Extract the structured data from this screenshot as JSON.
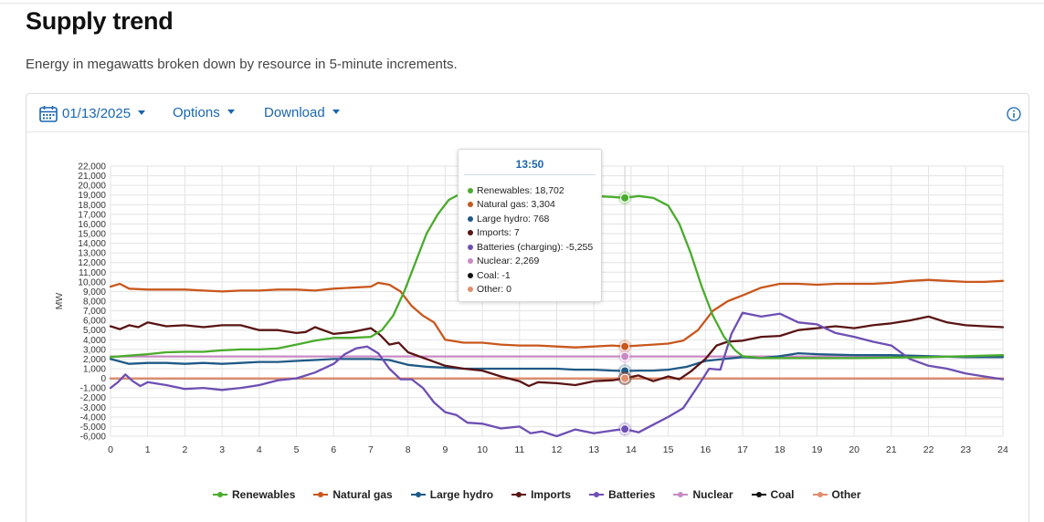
{
  "page": {
    "title": "Supply trend",
    "subtitle": "Energy in megawatts broken down by resource in 5-minute increments."
  },
  "toolbar": {
    "date": "01/13/2025",
    "options_label": "Options",
    "download_label": "Download",
    "icons": {
      "date": "calendar-icon",
      "info": "info-icon",
      "dropdown": "caret-down-icon"
    }
  },
  "tooltip": {
    "time": "13:50",
    "rows": [
      {
        "label": "Renewables: 18,702",
        "color": "#4aac2d"
      },
      {
        "label": "Natural gas: 3,304",
        "color": "#c9571d"
      },
      {
        "label": "Large hydro: 768",
        "color": "#1f5a86"
      },
      {
        "label": "Imports: 7",
        "color": "#5a1414"
      },
      {
        "label": "Batteries (charging): -5,255",
        "color": "#6e4fb3"
      },
      {
        "label": "Nuclear: 2,269",
        "color": "#c98ac4"
      },
      {
        "label": "Coal: -1",
        "color": "#111111"
      },
      {
        "label": "Other: 0",
        "color": "#e08d6c"
      }
    ]
  },
  "chart_data": {
    "type": "line",
    "ylabel": "MW",
    "xlabel": "",
    "xlim": [
      0,
      24
    ],
    "ylim": [
      -6000,
      22000
    ],
    "x_ticks": [
      0,
      1,
      2,
      3,
      4,
      5,
      6,
      7,
      8,
      9,
      10,
      11,
      12,
      13,
      14,
      15,
      16,
      17,
      18,
      19,
      20,
      21,
      22,
      23,
      24
    ],
    "y_ticks": [
      -6000,
      -5000,
      -4000,
      -3000,
      -2000,
      -1000,
      0,
      1000,
      2000,
      3000,
      4000,
      5000,
      6000,
      7000,
      8000,
      9000,
      10000,
      11000,
      12000,
      13000,
      14000,
      15000,
      16000,
      17000,
      18000,
      19000,
      20000,
      21000,
      22000
    ],
    "y_tick_labels": [
      "-6,000",
      "-5,000",
      "-4,000",
      "-3,000",
      "-2,000",
      "-1,000",
      "0",
      "1,000",
      "2,000",
      "3,000",
      "4,000",
      "5,000",
      "6,000",
      "7,000",
      "8,000",
      "9,000",
      "10,000",
      "11,000",
      "12,000",
      "13,000",
      "14,000",
      "15,000",
      "16,000",
      "17,000",
      "18,000",
      "19,000",
      "20,000",
      "21,000",
      "22,000"
    ],
    "grid": true,
    "legend_position": "bottom",
    "highlight_x": 13.833,
    "series": [
      {
        "name": "Renewables",
        "color": "#4aac2d",
        "x": [
          0,
          0.5,
          1,
          1.5,
          2,
          2.5,
          3,
          3.5,
          4,
          4.5,
          5,
          5.5,
          6,
          6.5,
          7,
          7.3,
          7.6,
          7.9,
          8.2,
          8.5,
          8.8,
          9.1,
          9.5,
          10,
          10.5,
          11,
          11.5,
          12,
          12.5,
          13,
          13.5,
          13.83,
          14.2,
          14.6,
          15,
          15.3,
          15.6,
          15.9,
          16.2,
          16.5,
          16.8,
          17,
          17.5,
          18,
          19,
          20,
          21,
          22,
          23,
          24
        ],
        "y": [
          2200,
          2350,
          2500,
          2700,
          2750,
          2750,
          2900,
          3000,
          3000,
          3100,
          3500,
          3900,
          4200,
          4200,
          4300,
          5000,
          6500,
          9000,
          12000,
          15000,
          17000,
          18500,
          19300,
          19400,
          19400,
          19400,
          19350,
          19300,
          19100,
          18900,
          18800,
          18702,
          18900,
          18700,
          17900,
          16000,
          13000,
          9500,
          6500,
          4300,
          2900,
          2300,
          2100,
          2100,
          2100,
          2100,
          2150,
          2200,
          2300,
          2400
        ]
      },
      {
        "name": "Natural gas",
        "color": "#c9571d",
        "x": [
          0,
          0.25,
          0.5,
          1,
          1.5,
          2,
          2.5,
          3,
          3.5,
          4,
          4.5,
          5,
          5.5,
          6,
          6.5,
          7,
          7.2,
          7.5,
          7.8,
          8.1,
          8.4,
          8.7,
          9,
          9.5,
          10,
          10.5,
          11,
          11.5,
          12,
          12.5,
          13,
          13.5,
          13.83,
          14.2,
          14.6,
          15,
          15.4,
          15.8,
          16.2,
          16.6,
          17,
          17.5,
          18,
          18.5,
          19,
          19.5,
          20,
          20.5,
          21,
          21.5,
          22,
          22.5,
          23,
          23.5,
          24
        ],
        "y": [
          9500,
          9800,
          9300,
          9200,
          9200,
          9200,
          9100,
          9000,
          9100,
          9100,
          9200,
          9200,
          9100,
          9300,
          9400,
          9500,
          9900,
          9700,
          9000,
          7500,
          6500,
          5800,
          4000,
          3700,
          3700,
          3500,
          3400,
          3400,
          3300,
          3200,
          3300,
          3400,
          3304,
          3400,
          3500,
          3600,
          3900,
          5000,
          7000,
          8000,
          8600,
          9400,
          9800,
          9800,
          9700,
          9800,
          9800,
          9800,
          9900,
          10100,
          10200,
          10100,
          10000,
          10000,
          10100
        ]
      },
      {
        "name": "Large hydro",
        "color": "#1f5a86",
        "x": [
          0,
          0.5,
          1,
          1.5,
          2,
          2.5,
          3,
          3.5,
          4,
          4.5,
          5,
          5.5,
          6,
          6.5,
          7,
          7.5,
          8,
          8.5,
          9,
          9.5,
          10,
          10.5,
          11,
          11.5,
          12,
          12.5,
          13,
          13.5,
          13.83,
          14.2,
          14.6,
          15,
          15.5,
          16,
          16.5,
          17,
          17.5,
          18,
          18.5,
          19,
          20,
          21,
          22,
          23,
          24
        ],
        "y": [
          2000,
          1500,
          1600,
          1600,
          1500,
          1600,
          1500,
          1600,
          1700,
          1700,
          1800,
          1900,
          2000,
          2000,
          2000,
          1900,
          1400,
          1200,
          1100,
          1000,
          1000,
          1000,
          1000,
          1000,
          1000,
          900,
          900,
          800,
          768,
          800,
          800,
          900,
          1200,
          1800,
          2000,
          2200,
          2100,
          2300,
          2600,
          2500,
          2400,
          2400,
          2300,
          2200,
          2200
        ]
      },
      {
        "name": "Imports",
        "color": "#5a1414",
        "x": [
          0,
          0.25,
          0.5,
          0.75,
          1,
          1.5,
          2,
          2.5,
          3,
          3.5,
          4,
          4.5,
          5,
          5.25,
          5.5,
          6,
          6.5,
          7,
          7.25,
          7.5,
          7.75,
          8,
          8.5,
          9,
          9.5,
          10,
          10.5,
          11,
          11.25,
          11.5,
          12,
          12.5,
          13,
          13.5,
          13.83,
          14.2,
          14.6,
          15,
          15.3,
          15.6,
          16,
          16.3,
          16.6,
          17,
          17.5,
          18,
          18.5,
          19,
          19.5,
          20,
          20.5,
          21,
          21.5,
          22,
          22.5,
          23,
          23.5,
          24
        ],
        "y": [
          5400,
          5100,
          5500,
          5300,
          5800,
          5400,
          5500,
          5300,
          5500,
          5500,
          5000,
          5000,
          4700,
          4800,
          5300,
          4600,
          4800,
          5200,
          4500,
          3500,
          3700,
          2700,
          2000,
          1300,
          1000,
          800,
          200,
          -300,
          -800,
          -400,
          -500,
          -700,
          -300,
          -200,
          7,
          300,
          -300,
          200,
          -100,
          700,
          2000,
          3400,
          3800,
          3900,
          4300,
          4400,
          5000,
          5200,
          5400,
          5200,
          5500,
          5700,
          6000,
          6400,
          5800,
          5500,
          5400,
          5300
        ]
      },
      {
        "name": "Batteries",
        "color": "#6e4fb3",
        "x": [
          0,
          0.2,
          0.4,
          0.6,
          0.8,
          1,
          1.5,
          2,
          2.5,
          3,
          3.5,
          4,
          4.5,
          5,
          5.5,
          6,
          6.3,
          6.6,
          6.9,
          7.2,
          7.5,
          7.8,
          8.1,
          8.4,
          8.7,
          9,
          9.3,
          9.6,
          10,
          10.5,
          11,
          11.3,
          11.6,
          12,
          12.5,
          13,
          13.5,
          13.83,
          14.2,
          14.6,
          15,
          15.4,
          15.8,
          16.1,
          16.4,
          16.7,
          17,
          17.5,
          18,
          18.5,
          19,
          19.5,
          20,
          20.5,
          21,
          21.5,
          22,
          22.5,
          23,
          23.5,
          24
        ],
        "y": [
          -1000,
          -400,
          400,
          -300,
          -800,
          -400,
          -700,
          -1100,
          -1000,
          -1200,
          -1000,
          -700,
          -200,
          0,
          600,
          1500,
          2500,
          3100,
          3300,
          2600,
          1000,
          -100,
          -100,
          -1000,
          -2500,
          -3500,
          -3800,
          -4600,
          -4700,
          -5200,
          -5000,
          -5700,
          -5500,
          -6000,
          -5300,
          -5700,
          -5400,
          -5255,
          -5600,
          -4800,
          -4000,
          -3100,
          -800,
          1000,
          900,
          4600,
          6800,
          6400,
          6700,
          5800,
          5600,
          4700,
          4300,
          3800,
          3400,
          2000,
          1300,
          1000,
          500,
          200,
          -100
        ]
      },
      {
        "name": "Nuclear",
        "color": "#c98ac4",
        "x": [
          0,
          24
        ],
        "y": [
          2269,
          2269
        ]
      },
      {
        "name": "Coal",
        "color": "#111111",
        "x": [
          0,
          24
        ],
        "y": [
          -1,
          -1
        ]
      },
      {
        "name": "Other",
        "color": "#e08d6c",
        "x": [
          0,
          24
        ],
        "y": [
          0,
          0
        ]
      }
    ]
  }
}
